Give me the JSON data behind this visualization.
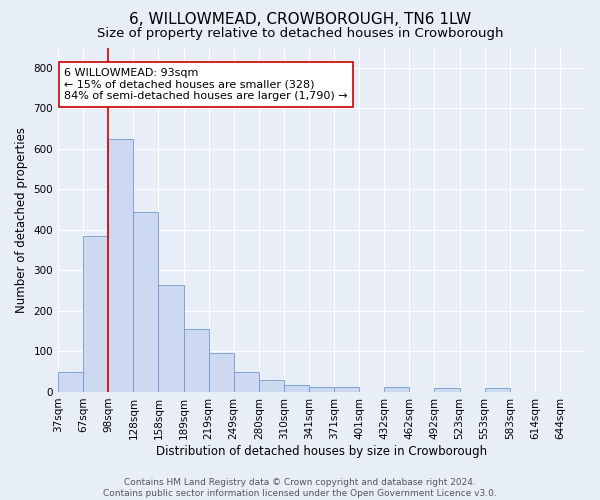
{
  "title": "6, WILLOWMEAD, CROWBOROUGH, TN6 1LW",
  "subtitle": "Size of property relative to detached houses in Crowborough",
  "xlabel": "Distribution of detached houses by size in Crowborough",
  "ylabel": "Number of detached properties",
  "bin_labels": [
    "37sqm",
    "67sqm",
    "98sqm",
    "128sqm",
    "158sqm",
    "189sqm",
    "219sqm",
    "249sqm",
    "280sqm",
    "310sqm",
    "341sqm",
    "371sqm",
    "401sqm",
    "432sqm",
    "462sqm",
    "492sqm",
    "523sqm",
    "553sqm",
    "583sqm",
    "614sqm",
    "644sqm"
  ],
  "bar_values": [
    50,
    385,
    625,
    443,
    265,
    155,
    97,
    50,
    30,
    18,
    13,
    13,
    0,
    13,
    0,
    10,
    0,
    10,
    0,
    0,
    0
  ],
  "bar_color": "#ccd9f0",
  "bar_edge_color": "#7099cc",
  "property_line_color": "#cc0000",
  "annotation_text": "6 WILLOWMEAD: 93sqm\n← 15% of detached houses are smaller (328)\n84% of semi-detached houses are larger (1,790) →",
  "annotation_box_color": "#ffffff",
  "annotation_box_edge": "#cc0000",
  "ylim": [
    0,
    850
  ],
  "yticks": [
    0,
    100,
    200,
    300,
    400,
    500,
    600,
    700,
    800
  ],
  "footer_text": "Contains HM Land Registry data © Crown copyright and database right 2024.\nContains public sector information licensed under the Open Government Licence v3.0.",
  "background_color": "#e8eef8",
  "grid_color": "#ffffff",
  "title_fontsize": 11,
  "subtitle_fontsize": 9.5,
  "axis_label_fontsize": 8.5,
  "tick_fontsize": 7.5,
  "annotation_fontsize": 8,
  "footer_fontsize": 6.5
}
